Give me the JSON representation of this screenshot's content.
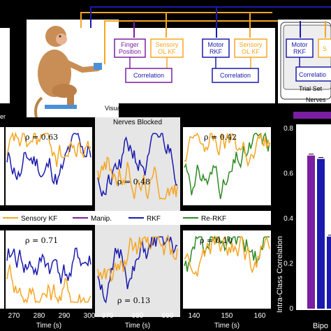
{
  "diagram": {
    "visual_label": "Visual F",
    "finger_position": [
      "Finger",
      "Position"
    ],
    "sensory_ol_kf": [
      "Sensory",
      "OL KF"
    ],
    "correlation": "Correlation",
    "motor_rkf": [
      "Motor",
      "RKF"
    ],
    "motor_rkf_short": [
      "Motor",
      "RKF"
    ],
    "sensory_cut": "S",
    "correlation_cut": "Correlatio",
    "trial_set": "Trial Set",
    "nerves_cut": "Nerves",
    "left_cut_label": "er"
  },
  "nerves_blocked_title": "Nerves Blocked",
  "legend": [
    {
      "label": "Sensory KF",
      "color": "#F5A623"
    },
    {
      "label": "Manip.",
      "color": "#7A1FA2"
    },
    {
      "label": "RKF",
      "color": "#1A1AAE"
    },
    {
      "label": "Re-RKF",
      "color": "#2E8B22"
    }
  ],
  "panels": {
    "row1": [
      {
        "rho": "ρ = 0.63"
      },
      {
        "rho": "ρ = 0.48"
      },
      {
        "rho": "ρ = 0.42"
      }
    ],
    "row2": [
      {
        "rho": "ρ = 0.71"
      },
      {
        "rho": "ρ = 0.13"
      },
      {
        "rho": "ρ = 0.10"
      }
    ]
  },
  "time_axes": [
    {
      "ticks": [
        "270",
        "280",
        "290",
        "300"
      ],
      "label": "Time (s)"
    },
    {
      "ticks": [
        "970",
        "980",
        "990"
      ],
      "label": "Time (s)"
    },
    {
      "ticks": [
        "140",
        "150",
        "160"
      ],
      "label": "Time (s)"
    }
  ],
  "chart_data": {
    "type": "bar",
    "ylabel": "Intra-Class Correlation",
    "ylim": [
      0,
      0.8
    ],
    "yticks": [
      "0",
      "0.2",
      "0.4",
      "0.6",
      "0.8"
    ],
    "xlabel_cut": "Bipo",
    "categories": [
      "",
      "",
      ""
    ],
    "values": [
      0.68,
      0.665,
      0.32
    ],
    "colors": [
      "#7A1FA2",
      "#1A1AAE",
      "#1A1AAE"
    ]
  }
}
